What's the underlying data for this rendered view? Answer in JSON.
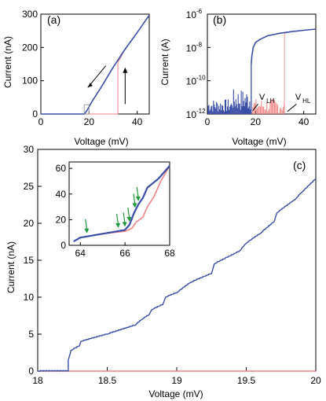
{
  "colors": {
    "blue": "#3a4ea8",
    "red": "#f08282",
    "green": "#1f9a3a",
    "axis": "#000000"
  },
  "chart_data": [
    {
      "panel": "(a)",
      "type": "line",
      "xlabel": "Voltage (mV)",
      "ylabel": "Current (nA)",
      "xlim": [
        0,
        45
      ],
      "ylim": [
        0,
        300
      ],
      "xticks": [
        "0",
        "20",
        "40"
      ],
      "yticks": [
        "0",
        "100",
        "200",
        "300"
      ],
      "series": [
        {
          "color": "blue",
          "x": [
            0,
            18,
            18.3,
            19.5,
            21,
            25,
            30,
            35,
            40,
            45
          ],
          "y": [
            0,
            0,
            2,
            15,
            35,
            80,
            140,
            195,
            245,
            297
          ]
        },
        {
          "color": "red",
          "x": [
            0,
            32,
            32,
            35,
            40,
            45
          ],
          "y": [
            0,
            0,
            155,
            195,
            245,
            297
          ]
        }
      ],
      "arrows": [
        "down along curve",
        "up at 32 mV"
      ],
      "inset_box": {
        "x": [
          18,
          20
        ],
        "y": [
          0,
          28
        ]
      }
    },
    {
      "panel": "(b)",
      "type": "line",
      "scale_y": "log",
      "xlabel": "Voltage (mV)",
      "ylabel": "Current (A)",
      "xlim": [
        0,
        45
      ],
      "ylim_exp": [
        -12,
        -6
      ],
      "xticks": [
        "0",
        "20",
        "40"
      ],
      "yticks": [
        {
          "base": "10",
          "exp": "-12",
          "pow": -12
        },
        {
          "base": "10",
          "exp": "-10",
          "pow": -10
        },
        {
          "base": "10",
          "exp": "-8",
          "pow": -8
        },
        {
          "base": "10",
          "exp": "-6",
          "pow": -6
        }
      ],
      "series": [
        {
          "color": "blue",
          "x": [
            18.2,
            18.5,
            19,
            20,
            22,
            25,
            30,
            35,
            40,
            45
          ],
          "y_log10": [
            -9.0,
            -8.5,
            -8.0,
            -7.7,
            -7.5,
            -7.3,
            -7.15,
            -7.05,
            -6.97,
            -6.9
          ]
        },
        {
          "color": "red",
          "x": [
            32,
            35,
            40,
            45
          ],
          "y_log10": [
            -7.15,
            -7.05,
            -6.97,
            -6.9
          ]
        }
      ],
      "annotations": [
        {
          "main": "V",
          "sub": "LH",
          "x_value": 18.2
        },
        {
          "main": "V",
          "sub": "HL",
          "x_value": 32
        }
      ]
    },
    {
      "panel": "(c)",
      "type": "line",
      "xlabel": "Voltage (mV)",
      "ylabel": "Current (nA)",
      "xlim": [
        18,
        20
      ],
      "ylim": [
        0,
        30
      ],
      "xticks": [
        "18",
        "18.5",
        "19",
        "19.5",
        "20"
      ],
      "yticks": [
        "0",
        "5",
        "10",
        "15",
        "20",
        "25",
        "30"
      ],
      "series": [
        {
          "color": "blue",
          "x": [
            18.0,
            18.22,
            18.22,
            18.24,
            18.3,
            18.31,
            18.5,
            18.7,
            18.75,
            18.8,
            18.82,
            18.9,
            18.92,
            19.0,
            19.1,
            19.25,
            19.27,
            19.45,
            19.5,
            19.6,
            19.7,
            19.72,
            19.85,
            19.9,
            20.0
          ],
          "y": [
            0,
            0,
            1.5,
            2.8,
            3.4,
            4.0,
            5.0,
            6.2,
            7.0,
            7.6,
            8.3,
            9.0,
            10.0,
            10.6,
            12.0,
            13.2,
            14.5,
            16.2,
            17.3,
            18.6,
            20.2,
            21.4,
            23.2,
            24.2,
            26.0
          ]
        },
        {
          "color": "red",
          "x": [
            18.0,
            20.0
          ],
          "y": [
            0,
            0
          ]
        }
      ],
      "inset": {
        "xlim": [
          63.5,
          68
        ],
        "ylim": [
          0,
          65
        ],
        "xticks": [
          "64",
          "66",
          "68"
        ],
        "yticks": [
          "0",
          "20",
          "40",
          "60"
        ],
        "series": [
          {
            "color": "blue",
            "x": [
              63.7,
              64,
              65,
              66,
              66.2,
              66.4,
              66.6,
              66.8,
              67,
              67.5,
              68
            ],
            "y": [
              3,
              6,
              9,
              12,
              16,
              25,
              32,
              37,
              45,
              52,
              62
            ]
          },
          {
            "color": "red",
            "x": [
              63.7,
              64,
              65,
              66,
              66.3,
              66.5,
              66.8,
              67,
              67.3,
              67.6,
              68
            ],
            "y": [
              3,
              6,
              9,
              11,
              13,
              18,
              22,
              30,
              38,
              50,
              62
            ]
          }
        ],
        "green_arrows_x": [
          64.3,
          65.7,
          66.0,
          66.2,
          66.45,
          66.6
        ]
      }
    }
  ]
}
